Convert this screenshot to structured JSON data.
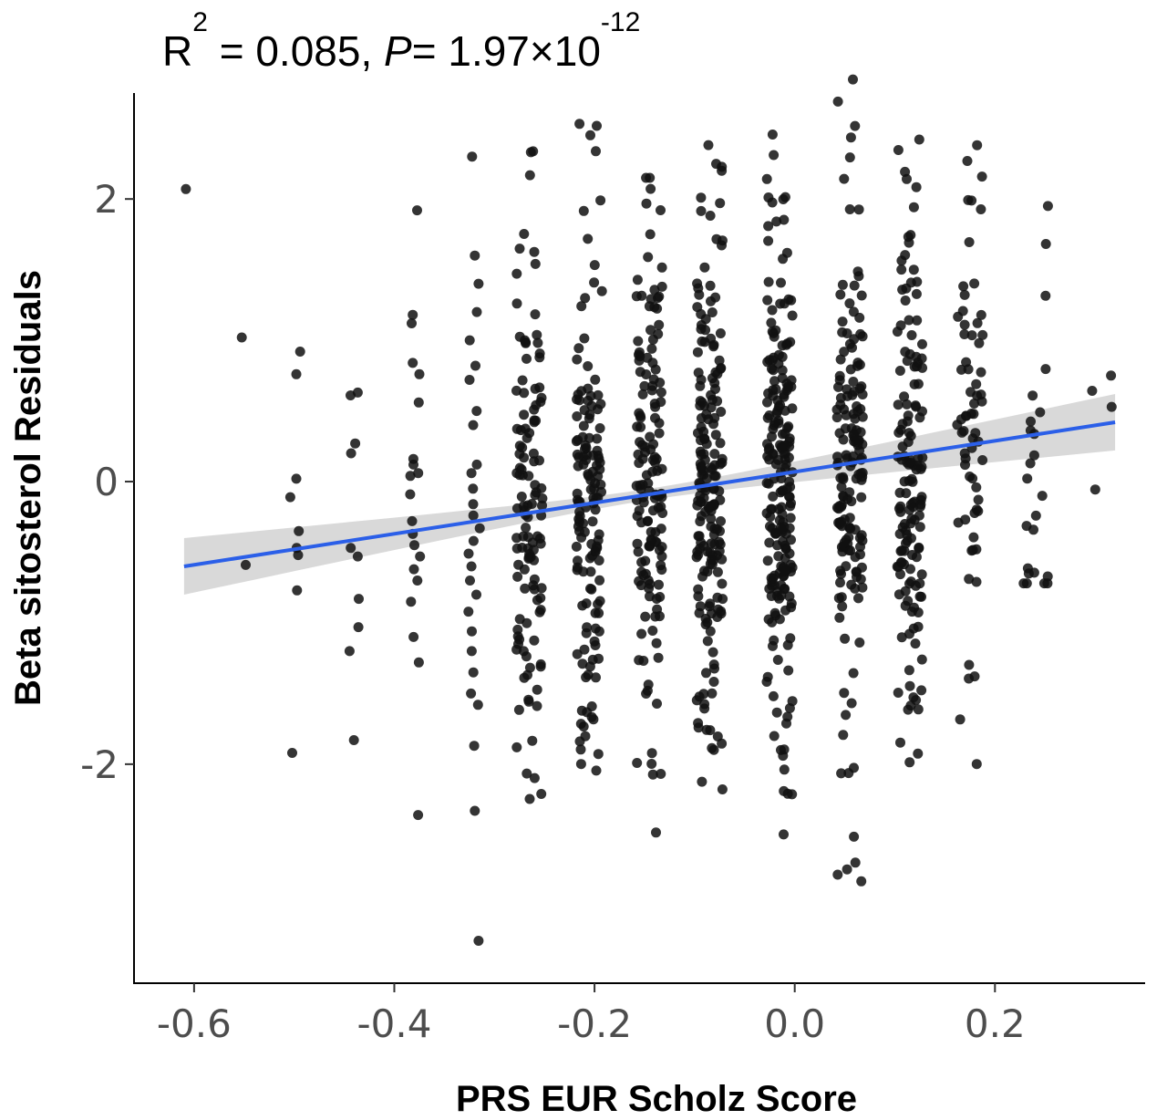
{
  "chart_data": {
    "type": "scatter",
    "annotation": {
      "r2_base": "R",
      "r2_exp": "2",
      "r2_value": " = 0.085, ",
      "p_label": "P",
      "p_value": "= 1.97×10",
      "p_exp": "-12"
    },
    "xlabel": "PRS EUR Scholz Score",
    "ylabel": "Beta sitosterol Residuals",
    "xlim": [
      -0.66,
      0.35
    ],
    "ylim": [
      -3.55,
      2.75
    ],
    "xticks": [
      -0.6,
      -0.4,
      -0.2,
      0.0,
      0.2
    ],
    "xtick_labels": [
      "-0.6",
      "-0.4",
      "-0.2",
      "0.0",
      "0.2"
    ],
    "yticks": [
      2,
      0,
      -2
    ],
    "ytick_labels": [
      "2",
      "0",
      "-2"
    ],
    "grid": false,
    "fit": {
      "type": "linear",
      "x": [
        -0.61,
        0.32
      ],
      "y": [
        -0.6,
        0.42
      ],
      "ci_halfwidth_at_ends": 0.2,
      "ci_halfwidth_at_center": 0.04,
      "line_color": "#2b5fe8",
      "band_color": "#cccccc"
    },
    "point_color": "#111111",
    "clusters": [
      {
        "x": -0.61,
        "y": [
          2.07
        ]
      },
      {
        "x": -0.55,
        "y": [
          1.02,
          -0.59
        ]
      },
      {
        "x": -0.5,
        "y": [
          0.92,
          0.76,
          0.02,
          -0.11,
          -0.35,
          -0.47,
          -0.52,
          -0.77,
          -1.92
        ]
      },
      {
        "x": -0.44,
        "y": [
          0.63,
          0.61,
          0.27,
          0.2,
          -0.47,
          -0.53,
          -0.83,
          -1.03,
          -1.2,
          -1.83
        ]
      },
      {
        "x": -0.38,
        "y": [
          1.92,
          1.18,
          1.12,
          0.84,
          0.76,
          0.56,
          0.16,
          0.12,
          0.06,
          0.04,
          -0.09,
          -0.28,
          -0.37,
          -0.45,
          -0.53,
          -0.62,
          -0.7,
          -0.85,
          -1.1,
          -1.28,
          -2.36
        ]
      },
      {
        "x": -0.32,
        "y": [
          2.3,
          1.6,
          1.4,
          1.2,
          1.0,
          0.82,
          0.72,
          0.5,
          0.4,
          0.12,
          0.06,
          -0.05,
          -0.16,
          -0.24,
          -0.33,
          -0.42,
          -0.51,
          -0.6,
          -0.7,
          -0.8,
          -0.92,
          -1.06,
          -1.2,
          -1.35,
          -1.5,
          -1.58,
          -1.87,
          -2.33,
          -3.25
        ]
      }
    ],
    "dense_clusters": [
      {
        "x": -0.265,
        "n": 120,
        "y_min": -2.65,
        "y_max": 2.35
      },
      {
        "x": -0.205,
        "n": 140,
        "y_min": -2.15,
        "y_max": 2.55
      },
      {
        "x": -0.145,
        "n": 145,
        "y_min": -2.75,
        "y_max": 2.15
      },
      {
        "x": -0.085,
        "n": 185,
        "y_min": -2.35,
        "y_max": 2.45
      },
      {
        "x": -0.015,
        "n": 205,
        "y_min": -2.5,
        "y_max": 2.55
      },
      {
        "x": 0.055,
        "n": 160,
        "y_min": -2.95,
        "y_max": 2.85
      },
      {
        "x": 0.115,
        "n": 145,
        "y_min": -2.0,
        "y_max": 2.5
      },
      {
        "x": 0.175,
        "n": 65,
        "y_min": -2.05,
        "y_max": 2.5
      },
      {
        "x": 0.24,
        "n": 24,
        "y_min": -0.72,
        "y_max": 1.95
      },
      {
        "x": 0.31,
        "n": 4,
        "y_min": -0.15,
        "y_max": 0.75
      }
    ]
  }
}
